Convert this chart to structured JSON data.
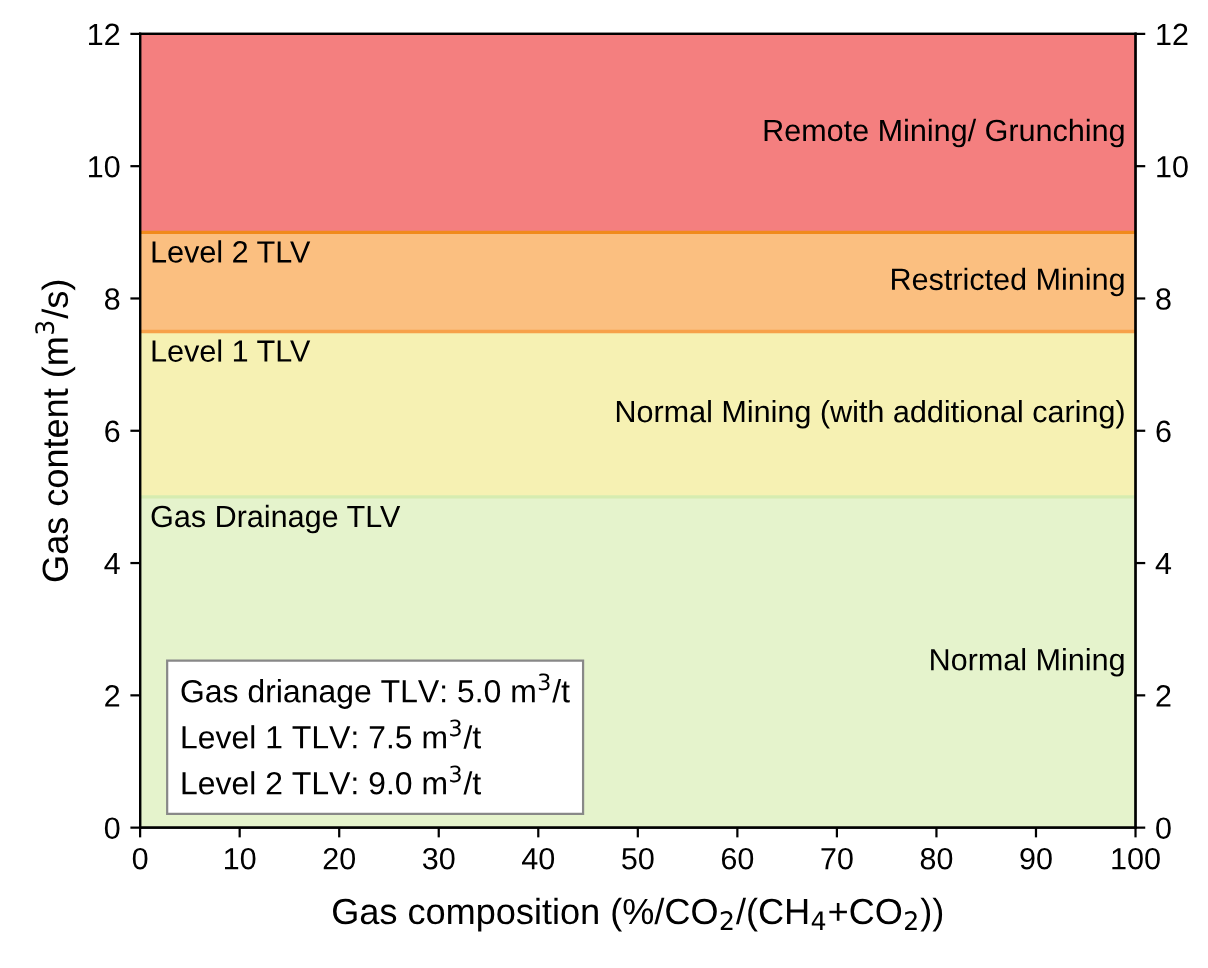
{
  "chart_data": {
    "type": "line",
    "xlabel": "Gas composition (%/CO$_{2}$/(CH$_{4}$+CO$_{2}$))",
    "ylabel": "Gas content (m$^{3}$/s)",
    "xlim": [
      0,
      100
    ],
    "xticks": [
      0,
      10,
      20,
      30,
      40,
      50,
      60,
      70,
      80,
      90,
      100
    ],
    "ylim": [
      0,
      12
    ],
    "yticks": [
      0,
      2,
      4,
      6,
      8,
      10,
      12
    ],
    "y2lim": [
      0,
      12
    ],
    "y2ticks": [
      0,
      2,
      4,
      6,
      8,
      10,
      12
    ],
    "bands": [
      {
        "axis": "y",
        "from": 0,
        "to": 5,
        "label": "Normal Mining",
        "color": "#e5f3cc"
      },
      {
        "axis": "y",
        "from": 5,
        "to": 7.5,
        "label": "Normal Mining (with additional caring)",
        "color": "#f6f1b3"
      },
      {
        "axis": "y",
        "from": 7.5,
        "to": 9,
        "label": "Restricted Mining",
        "color": "#fbbf80"
      },
      {
        "axis": "y",
        "from": 9,
        "to": 12,
        "label": "Remote Mining/ Grunching",
        "color": "#f47f7f"
      }
    ],
    "ref_lines": [
      {
        "axis": "y",
        "value": 5,
        "label": "Gas Drainage TLV",
        "color": "#d6ecb0"
      },
      {
        "axis": "y",
        "value": 7.5,
        "label": "Level 1 TLV",
        "color": "#f7a14a"
      },
      {
        "axis": "y",
        "value": 9,
        "label": "Level 2 TLV",
        "color": "#f08a1c"
      }
    ],
    "annotations": [
      "Gas drianage TLV: 5.0 m$^{3}$/t\nLevel 1 TLV: 7.5 m$^{3}$/t\nLevel 2 TLV: 9.0 m$^{3}$/t"
    ],
    "grid": false
  }
}
